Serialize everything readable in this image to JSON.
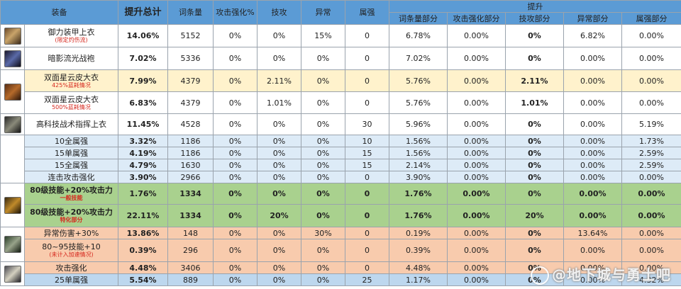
{
  "header": {
    "equip": "装备",
    "total": "提升总计",
    "entries": "词条量",
    "atk_pct": "攻击强化%",
    "skill": "技攻",
    "abnormal": "异常",
    "element": "属强",
    "boost": "提升",
    "entries_part": "词条量部分",
    "atk_part": "攻击强化部分",
    "skill_part": "技攻部分",
    "abnormal_part": "异常部分",
    "element_part": "属强部分"
  },
  "rows": [
    {
      "name": "御力装甲上衣",
      "sub": "(限定灼伤流)",
      "total": "14.06%",
      "entries": "5152",
      "atk": "0%",
      "skill": "0%",
      "abn": "15%",
      "elem": "0",
      "p_entries": "6.78%",
      "p_atk": "0.00%",
      "p_skill": "0%",
      "p_abn": "6.82%",
      "p_elem": "0.00%"
    },
    {
      "name": "暗影流光战袍",
      "sub": "",
      "total": "7.02%",
      "entries": "5336",
      "atk": "0%",
      "skill": "0%",
      "abn": "0%",
      "elem": "0",
      "p_entries": "7.02%",
      "p_atk": "0.00%",
      "p_skill": "0%",
      "p_abn": "0.00%",
      "p_elem": "0.00%"
    },
    {
      "name": "双面星云皮大衣",
      "sub": "425%蓝耗情况",
      "total": "7.99%",
      "entries": "4379",
      "atk": "0%",
      "skill": "2.11%",
      "abn": "0%",
      "elem": "0",
      "p_entries": "5.76%",
      "p_atk": "0.00%",
      "p_skill": "2.11%",
      "p_abn": "0.00%",
      "p_elem": "0.00%"
    },
    {
      "name": "双面星云皮大衣",
      "sub": "500%蓝耗情况",
      "total": "6.83%",
      "entries": "4379",
      "atk": "0%",
      "skill": "1.01%",
      "abn": "0%",
      "elem": "0",
      "p_entries": "5.76%",
      "p_atk": "0.00%",
      "p_skill": "1.01%",
      "p_abn": "0.00%",
      "p_elem": "0.00%"
    },
    {
      "name": "高科技战术指挥上衣",
      "sub": "",
      "total": "11.45%",
      "entries": "4528",
      "atk": "0%",
      "skill": "0%",
      "abn": "0%",
      "elem": "30",
      "p_entries": "5.96%",
      "p_atk": "0.00%",
      "p_skill": "0%",
      "p_abn": "0.00%",
      "p_elem": "5.19%"
    },
    {
      "name": "10全属强",
      "sub": "",
      "total": "3.32%",
      "entries": "1186",
      "atk": "0%",
      "skill": "0%",
      "abn": "0%",
      "elem": "10",
      "p_entries": "1.56%",
      "p_atk": "0.00%",
      "p_skill": "0%",
      "p_abn": "0.00%",
      "p_elem": "1.73%"
    },
    {
      "name": "15单属强",
      "sub": "",
      "total": "4.19%",
      "entries": "1186",
      "atk": "0%",
      "skill": "0%",
      "abn": "0%",
      "elem": "15",
      "p_entries": "1.56%",
      "p_atk": "0.00%",
      "p_skill": "0%",
      "p_abn": "0.00%",
      "p_elem": "2.59%"
    },
    {
      "name": "15全属强",
      "sub": "",
      "total": "4.79%",
      "entries": "1630",
      "atk": "0%",
      "skill": "0%",
      "abn": "0%",
      "elem": "15",
      "p_entries": "2.14%",
      "p_atk": "0.00%",
      "p_skill": "0%",
      "p_abn": "0.00%",
      "p_elem": "2.59%"
    },
    {
      "name": "连击攻击强化",
      "sub": "",
      "total": "3.90%",
      "entries": "2966",
      "atk": "0%",
      "skill": "0%",
      "abn": "0%",
      "elem": "0",
      "p_entries": "3.90%",
      "p_atk": "0.00%",
      "p_skill": "0%",
      "p_abn": "0.00%",
      "p_elem": "0.00%"
    },
    {
      "name": "80级技能+20%攻击力",
      "sub": "一般技能",
      "total": "1.76%",
      "entries": "1334",
      "atk": "0%",
      "skill": "0%",
      "abn": "0%",
      "elem": "0",
      "p_entries": "1.76%",
      "p_atk": "0.00%",
      "p_skill": "0%",
      "p_abn": "0.00%",
      "p_elem": "0.00%"
    },
    {
      "name": "80级技能+20%攻击力",
      "sub": "特化部分",
      "total": "22.11%",
      "entries": "1334",
      "atk": "0%",
      "skill": "20%",
      "abn": "0%",
      "elem": "0",
      "p_entries": "1.76%",
      "p_atk": "0.00%",
      "p_skill": "20%",
      "p_abn": "0.00%",
      "p_elem": "0.00%"
    },
    {
      "name": "异常伤害+30%",
      "sub": "",
      "total": "13.86%",
      "entries": "148",
      "atk": "0%",
      "skill": "0%",
      "abn": "30%",
      "elem": "0",
      "p_entries": "0.19%",
      "p_atk": "0.00%",
      "p_skill": "0%",
      "p_abn": "13.64%",
      "p_elem": "0.00%"
    },
    {
      "name": "80~95技能+10",
      "sub": "(未计入加速情况)",
      "total": "0.39%",
      "entries": "296",
      "atk": "0%",
      "skill": "0%",
      "abn": "0%",
      "elem": "0",
      "p_entries": "0.39%",
      "p_atk": "0.00%",
      "p_skill": "0%",
      "p_abn": "0.00%",
      "p_elem": "0.00%"
    },
    {
      "name": "攻击强化",
      "sub": "",
      "total": "4.48%",
      "entries": "3406",
      "atk": "0%",
      "skill": "0%",
      "abn": "0%",
      "elem": "0",
      "p_entries": "4.48%",
      "p_atk": "0.00%",
      "p_skill": "0%",
      "p_abn": "0.00%",
      "p_elem": "0.00%"
    },
    {
      "name": "25单属强",
      "sub": "",
      "total": "5.54%",
      "entries": "889",
      "atk": "0%",
      "skill": "0%",
      "abn": "0%",
      "elem": "25",
      "p_entries": "1.17%",
      "p_atk": "0.00%",
      "p_skill": "0%",
      "p_abn": "0.00%",
      "p_elem": "4.32%"
    }
  ],
  "icons": [
    "armor-coat-icon",
    "shadow-robe-icon",
    "nebula-coat-icon",
    "tactical-coat-icon",
    "gold-gear-icon",
    "abnormal-gear-icon",
    "silver-gear-icon"
  ],
  "watermark": "@地下城与勇士吧",
  "colors": {
    "header": "#5b9bd5",
    "yellow": "#fff2cc",
    "blue": "#ddebf7",
    "green": "#a9d18e",
    "orange": "#f8cbad",
    "red": "#e01b1b"
  }
}
